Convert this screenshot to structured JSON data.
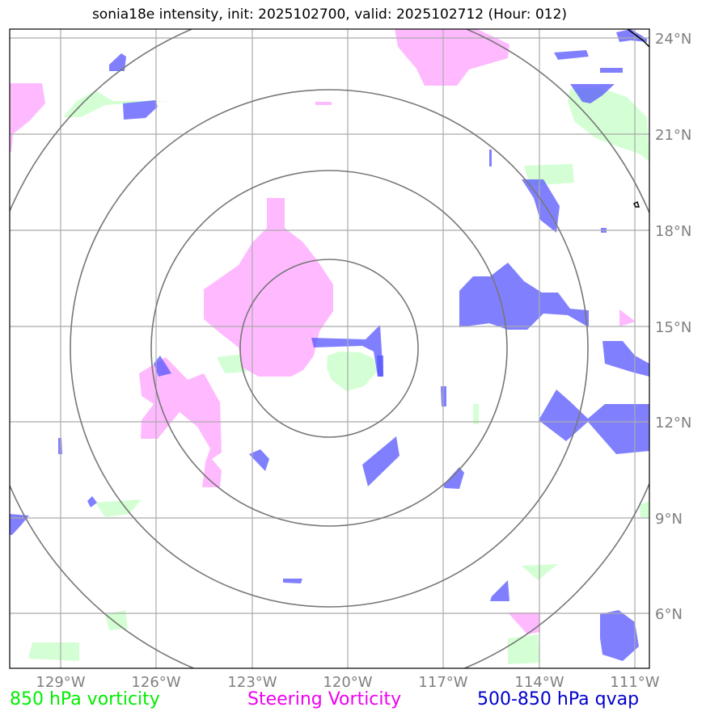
{
  "title": "sonia18e intensity, init: 2025102700, valid: 2025102712 (Hour: 012)",
  "map": {
    "lon_labels": [
      "129°W",
      "126°W",
      "123°W",
      "120°W",
      "117°W",
      "114°W",
      "111°W"
    ],
    "lat_labels": [
      "24°N",
      "21°N",
      "18°N",
      "15°N",
      "12°N",
      "9°N",
      "6°N"
    ],
    "center": {
      "lon": -120.0,
      "lat": 14.5
    },
    "range_rings_deg": [
      2.7,
      5.5,
      8.2,
      11.0
    ],
    "grid": true
  },
  "colors": {
    "vort850": "#ccffcc",
    "steering": "#ffb3ff",
    "qvap": "#5555ff",
    "ring": "#777777",
    "grid": "#aaaaaa"
  },
  "legend": {
    "vort850": "850 hPa vorticity",
    "steering": "Steering Vorticity",
    "qvap": "500-850 hPa qvap"
  }
}
